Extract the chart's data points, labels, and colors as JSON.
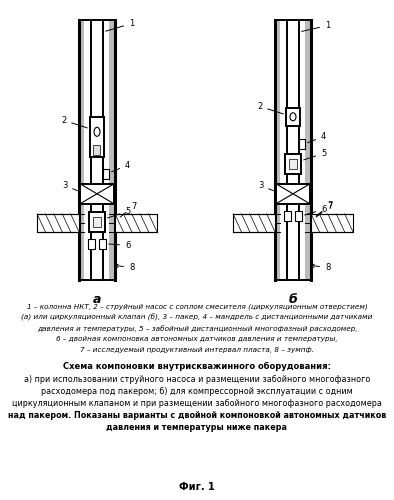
{
  "fig_width": 3.94,
  "fig_height": 5.0,
  "dpi": 100,
  "bg_color": "#ffffff",
  "line_color": "#000000",
  "label_a": "а",
  "label_b": "б",
  "caption_lines": [
    "1 – колонна НКТ, 2 – струйный насос с соплом смесителя (циркуляционным отверстием)",
    "(а) или циркуляционный клапан (б), 3 – пакер, 4 – мандрель с дистанционными датчиками",
    "давления и температуры, 5 – забойный дистанционный многофазный расходомер,",
    "6 – двойная компоновка автономных датчиков давления и температуры,",
    "7 – исследуемый продуктивный интервал пласта, 8 – зумпф."
  ],
  "schema_title": "Схема компоновки внутрискважинного оборудования:",
  "schema_desc_lines": [
    "а) при использовании струйного насоса и размещении забойного многофазного",
    "расходомера под пакером; б) для компрессорной эксплуатации с одним",
    "циркуляционным клапаном и при размещении забойного многофазного расходомера",
    "над пакером. Показаны варианты с двойной компоновкой автономных датчиков",
    "давления и температуры ниже пакера"
  ],
  "fig_label": "Фиг. 1"
}
